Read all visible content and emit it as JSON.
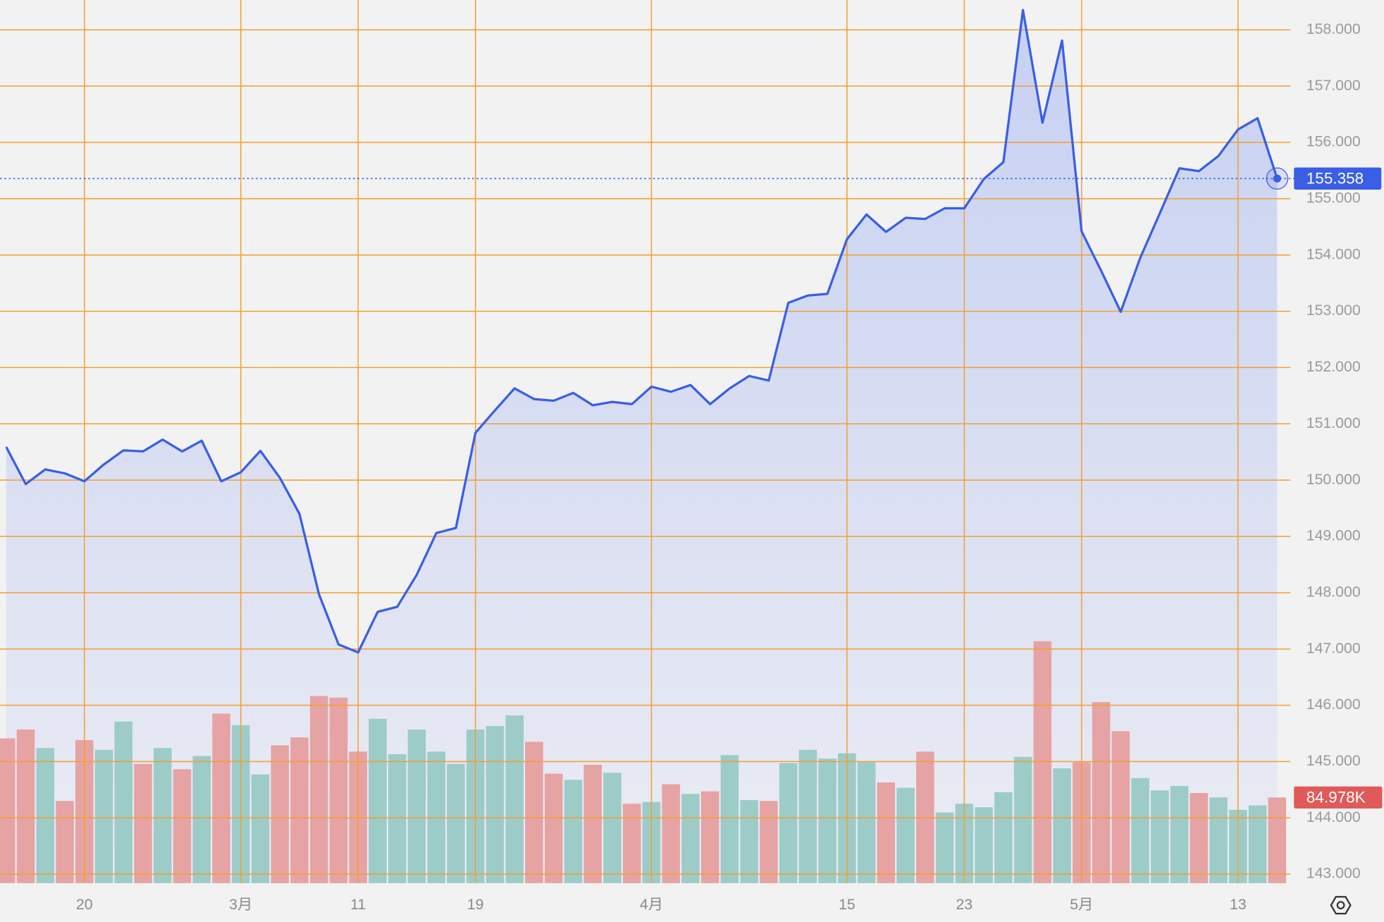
{
  "chart_data": {
    "type": "line",
    "categories": [
      null,
      null,
      null,
      null,
      "20",
      null,
      null,
      null,
      null,
      null,
      null,
      null,
      "3月",
      null,
      null,
      null,
      null,
      null,
      "11",
      null,
      null,
      null,
      null,
      null,
      "19",
      null,
      null,
      null,
      null,
      null,
      null,
      null,
      null,
      "4月",
      null,
      null,
      null,
      null,
      null,
      null,
      null,
      null,
      null,
      "15",
      null,
      null,
      null,
      null,
      null,
      "23",
      null,
      null,
      null,
      null,
      null,
      "5月",
      null,
      null,
      null,
      null,
      null,
      null,
      null,
      "13",
      null,
      null
    ],
    "series": [
      {
        "type": "line",
        "color": "#3a5ee6",
        "values": [
          150.59,
          149.93,
          150.19,
          150.12,
          149.98,
          150.28,
          150.53,
          150.51,
          150.72,
          150.51,
          150.7,
          149.98,
          150.14,
          150.52,
          150.04,
          149.4,
          147.97,
          147.08,
          146.94,
          147.66,
          147.75,
          148.32,
          149.06,
          149.15,
          150.84,
          151.24,
          151.63,
          151.44,
          151.41,
          151.55,
          151.33,
          151.39,
          151.35,
          151.66,
          151.57,
          151.69,
          151.35,
          151.63,
          151.85,
          151.77,
          153.15,
          153.28,
          153.31,
          154.28,
          154.72,
          154.41,
          154.66,
          154.64,
          154.83,
          154.83,
          155.35,
          155.65,
          158.35,
          156.35,
          157.81,
          154.42,
          153.72,
          152.99,
          153.95,
          154.74,
          155.54,
          155.49,
          155.76,
          156.23,
          156.43,
          155.358
        ]
      },
      {
        "type": "bar",
        "axis": "y2",
        "values": [
          143.6,
          152.4,
          134.0,
          81.5,
          141.9,
          132.3,
          160.3,
          118.3,
          134.0,
          113.0,
          126.2,
          168.2,
          156.8,
          107.8,
          136.7,
          144.6,
          185.7,
          184.0,
          130.5,
          163.0,
          127.9,
          152.4,
          130.5,
          118.3,
          152.4,
          155.9,
          166.4,
          140.2,
          108.6,
          102.5,
          117.4,
          109.5,
          78.8,
          80.6,
          98.1,
          88.5,
          91.1,
          127.0,
          82.4,
          81.5,
          119.1,
          132.3,
          123.5,
          128.8,
          120.0,
          99.9,
          94.6,
          130.5,
          70.1,
          78.8,
          75.3,
          90.2,
          125.3,
          240.0,
          113.9,
          120.0,
          179.6,
          150.7,
          104.2,
          92.0,
          96.4,
          89.4,
          85.0,
          72.7,
          77.1,
          84.978
        ],
        "value_labels": [
          null,
          null,
          null,
          null,
          null,
          null,
          null,
          null,
          null,
          null,
          null,
          null,
          null,
          null,
          null,
          null,
          null,
          null,
          null,
          null,
          null,
          null,
          null,
          null,
          null,
          null,
          null,
          null,
          null,
          null,
          null,
          null,
          null,
          null,
          null,
          null,
          null,
          null,
          null,
          null,
          null,
          null,
          null,
          null,
          null,
          null,
          null,
          null,
          null,
          null,
          null,
          null,
          null,
          null,
          null,
          null,
          null,
          null,
          null,
          null,
          null,
          null,
          null,
          null,
          null,
          "84.978K"
        ],
        "colors": [
          "#e6a3a3",
          "#e6a3a3",
          "#9dcbc8",
          "#e6a3a3",
          "#e6a3a3",
          "#9dcbc8",
          "#9dcbc8",
          "#e6a3a3",
          "#9dcbc8",
          "#e6a3a3",
          "#9dcbc8",
          "#e6a3a3",
          "#9dcbc8",
          "#9dcbc8",
          "#e6a3a3",
          "#e6a3a3",
          "#e6a3a3",
          "#e6a3a3",
          "#e6a3a3",
          "#9dcbc8",
          "#9dcbc8",
          "#9dcbc8",
          "#9dcbc8",
          "#9dcbc8",
          "#9dcbc8",
          "#9dcbc8",
          "#9dcbc8",
          "#e6a3a3",
          "#e6a3a3",
          "#9dcbc8",
          "#e6a3a3",
          "#9dcbc8",
          "#e6a3a3",
          "#9dcbc8",
          "#e6a3a3",
          "#9dcbc8",
          "#e6a3a3",
          "#9dcbc8",
          "#9dcbc8",
          "#e6a3a3",
          "#9dcbc8",
          "#9dcbc8",
          "#9dcbc8",
          "#9dcbc8",
          "#9dcbc8",
          "#e6a3a3",
          "#9dcbc8",
          "#e6a3a3",
          "#9dcbc8",
          "#9dcbc8",
          "#9dcbc8",
          "#9dcbc8",
          "#9dcbc8",
          "#e6a3a3",
          "#9dcbc8",
          "#e6a3a3",
          "#e6a3a3",
          "#e6a3a3",
          "#9dcbc8",
          "#9dcbc8",
          "#9dcbc8",
          "#e6a3a3",
          "#9dcbc8",
          "#9dcbc8",
          "#9dcbc8",
          "#e6a3a3"
        ]
      }
    ],
    "ylim": [
      142.84,
      158.53
    ],
    "yticks": [
      {
        "value": 143,
        "label": "143.000"
      },
      {
        "value": 144,
        "label": "144.000"
      },
      {
        "value": 145,
        "label": "145.000"
      },
      {
        "value": 146,
        "label": "146.000"
      },
      {
        "value": 147,
        "label": "147.000"
      },
      {
        "value": 148,
        "label": "148.000"
      },
      {
        "value": 149,
        "label": "149.000"
      },
      {
        "value": 150,
        "label": "150.000"
      },
      {
        "value": 151,
        "label": "151.000"
      },
      {
        "value": 152,
        "label": "152.000"
      },
      {
        "value": 153,
        "label": "153.000"
      },
      {
        "value": 154,
        "label": "154.000"
      },
      {
        "value": 155,
        "label": "155.000"
      },
      {
        "value": 156,
        "label": "156.000"
      },
      {
        "value": 157,
        "label": "157.000"
      },
      {
        "value": 158,
        "label": "158.000"
      }
    ],
    "y2lim": [
      0,
      300
    ],
    "grid": true,
    "grid_color": "#f0a030",
    "last_value_badge_color": "#3a5ee6",
    "last_volume_badge_color": "#e05a5a"
  }
}
